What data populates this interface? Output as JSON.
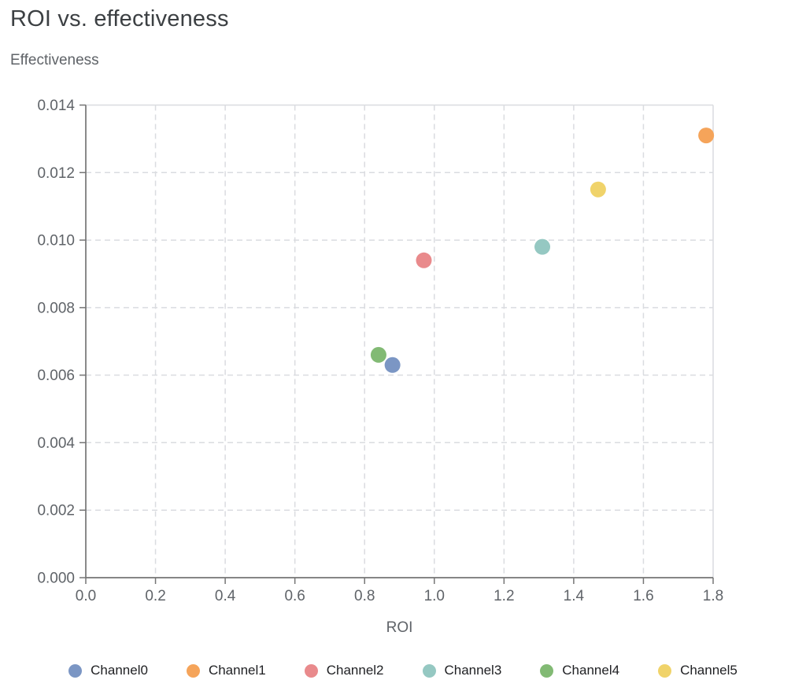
{
  "header": {
    "title": "ROI vs. effectiveness"
  },
  "chart_data": {
    "type": "scatter",
    "title": "ROI vs. effectiveness",
    "xlabel": "ROI",
    "ylabel": "Effectiveness",
    "xlim": [
      0.0,
      1.8
    ],
    "ylim": [
      0.0,
      0.014
    ],
    "x_ticks": [
      0.0,
      0.2,
      0.4,
      0.6,
      0.8,
      1.0,
      1.2,
      1.4,
      1.6,
      1.8
    ],
    "y_ticks": [
      0.0,
      0.002,
      0.004,
      0.006,
      0.008,
      0.01,
      0.012,
      0.014
    ],
    "x_tick_decimals": 1,
    "y_tick_decimals": 3,
    "grid": true,
    "grid_style": "dashed",
    "legend_position": "bottom",
    "series": [
      {
        "name": "Channel0",
        "color": "#7b96c4",
        "x": 0.88,
        "y": 0.0063
      },
      {
        "name": "Channel1",
        "color": "#f5a45a",
        "x": 1.78,
        "y": 0.0131
      },
      {
        "name": "Channel2",
        "color": "#e98a8c",
        "x": 0.97,
        "y": 0.0094
      },
      {
        "name": "Channel3",
        "color": "#95c8c2",
        "x": 1.31,
        "y": 0.0098
      },
      {
        "name": "Channel4",
        "color": "#82ba74",
        "x": 0.84,
        "y": 0.0066
      },
      {
        "name": "Channel5",
        "color": "#f0d36a",
        "x": 1.47,
        "y": 0.0115
      }
    ],
    "style": {
      "marker_radius": 10,
      "axis_color": "#757575",
      "grid_color": "#dadce0",
      "border_color": "#dadce0",
      "tick_text_color": "#5f6368",
      "title_color": "#3c4043",
      "legend_text_color": "#202124"
    }
  }
}
